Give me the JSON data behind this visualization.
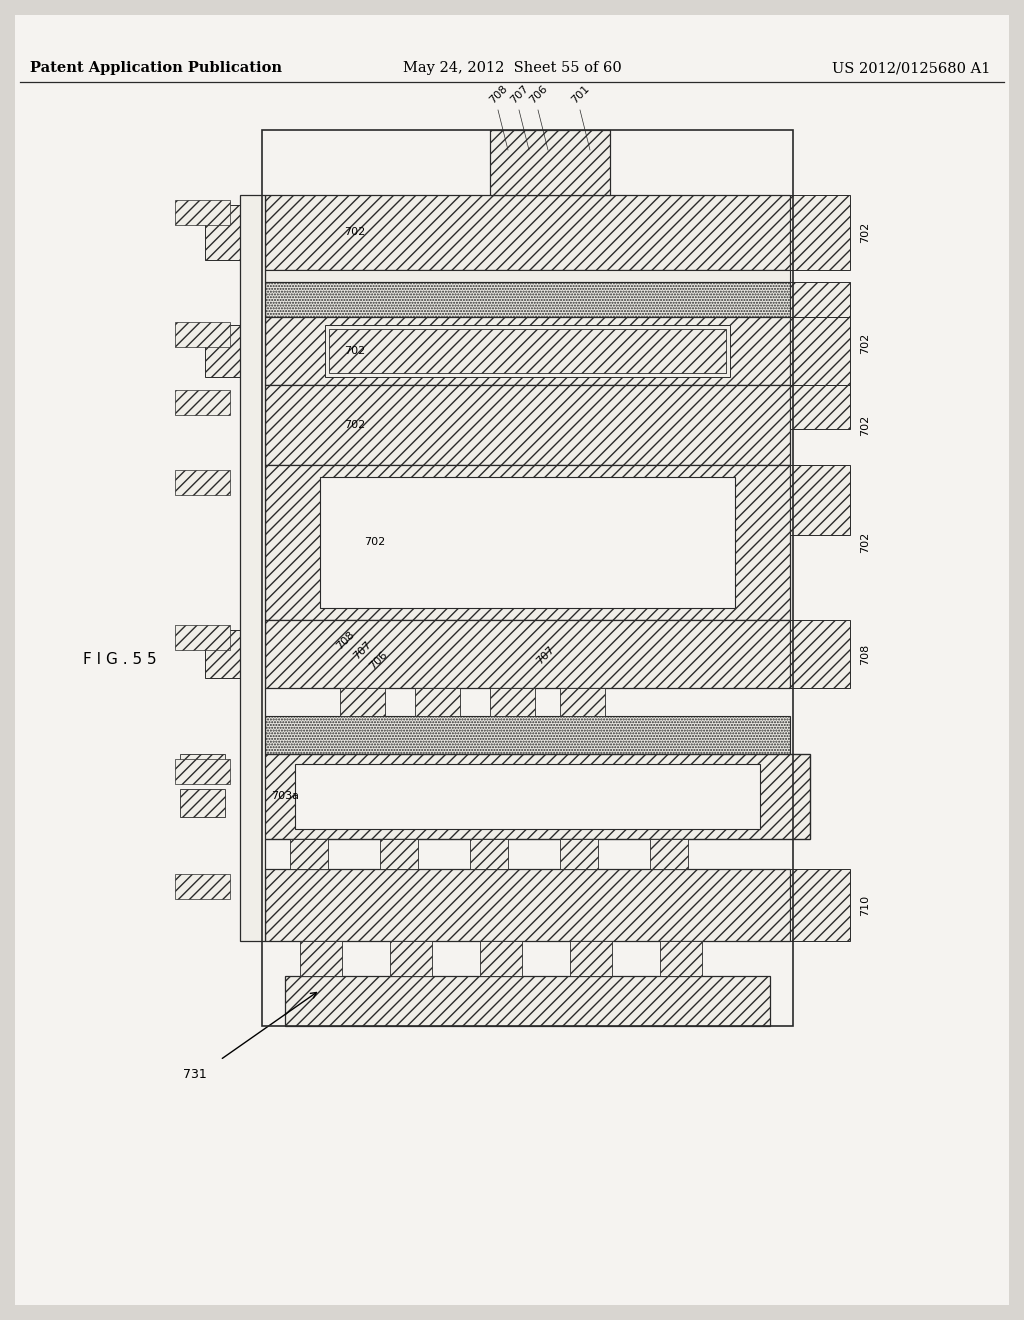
{
  "background_color": "#d8d5d0",
  "page_bg": "#f2f0ed",
  "header_text_left": "Patent Application Publication",
  "header_text_mid": "May 24, 2012  Sheet 55 of 60",
  "header_text_right": "US 2012/0125680 A1",
  "header_font_size": 10.5,
  "fig_label": "F I G . 5 5",
  "line_color": "#2a2a2a",
  "hatch_color": "#2a2a2a",
  "label_fontsize": 8.0
}
